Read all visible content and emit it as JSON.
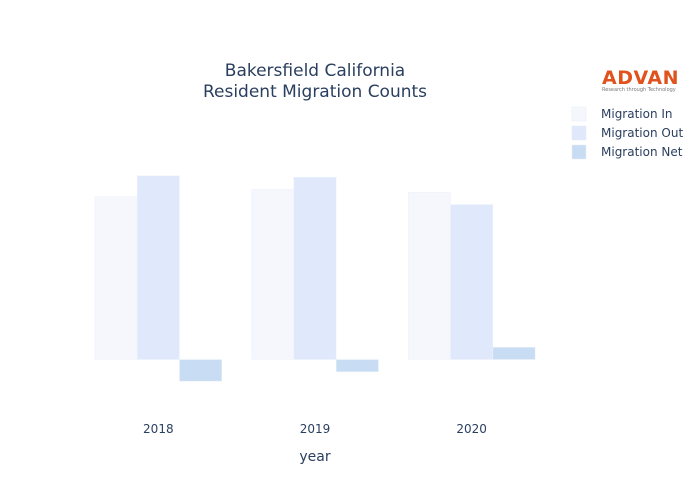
{
  "chart_data": {
    "type": "bar",
    "title_line1": "Bakersfield California",
    "title_line2": "Resident Migration Counts",
    "xlabel": "year",
    "ylabel": "",
    "categories": [
      "2018",
      "2019",
      "2020"
    ],
    "series": [
      {
        "name": "Migration In",
        "values": [
          2260,
          2360,
          2320
        ],
        "color": "#f5f7fd"
      },
      {
        "name": "Migration Out",
        "values": [
          2550,
          2530,
          2150
        ],
        "color": "#dfe9fb"
      },
      {
        "name": "Migration Net",
        "values": [
          -300,
          -170,
          170
        ],
        "color": "#c8dcf3"
      }
    ],
    "ylim": [
      -700,
      3600
    ],
    "grid": false
  },
  "logo": {
    "name": "ADVAN",
    "tagline": "Research through Technology"
  }
}
